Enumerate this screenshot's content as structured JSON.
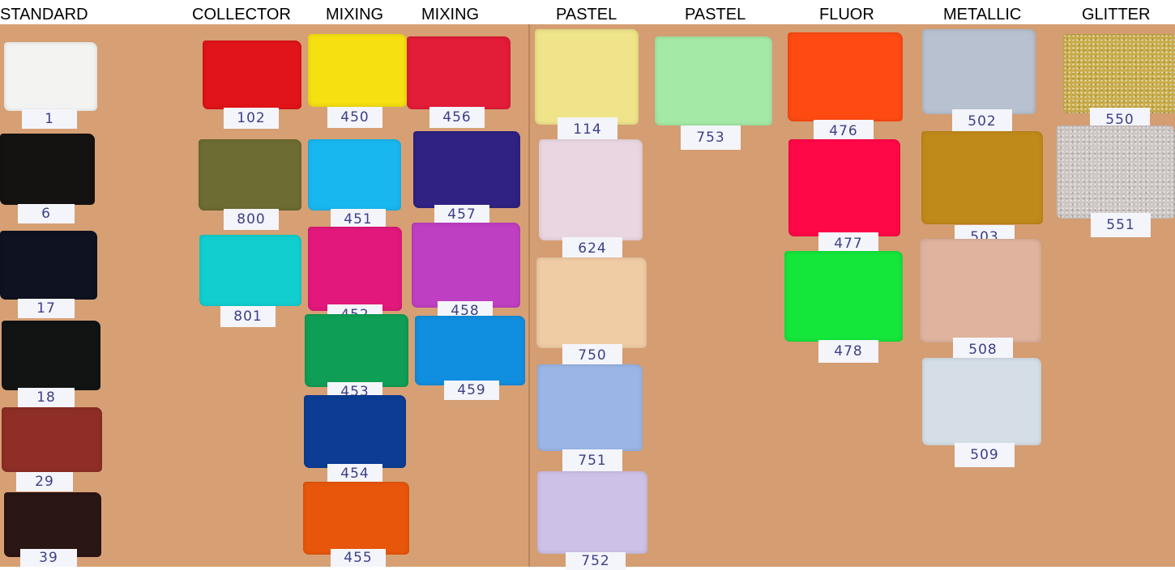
{
  "headers": [
    "STANDARD",
    "COLLECTOR",
    "MIXING",
    "MIXING",
    "PASTEL",
    "PASTEL",
    "FLUOR",
    "METALLIC",
    "GLITTER"
  ],
  "board_colors": {
    "left": "#d6a074",
    "right": "#d49d72"
  },
  "swatches": [
    {
      "code": "1",
      "color": "#f3f3f2",
      "group": "STANDARD"
    },
    {
      "code": "6",
      "color": "#151212",
      "group": "STANDARD"
    },
    {
      "code": "17",
      "color": "#0f1220",
      "group": "STANDARD"
    },
    {
      "code": "18",
      "color": "#121414",
      "group": "STANDARD"
    },
    {
      "code": "29",
      "color": "#8e2e26",
      "group": "STANDARD"
    },
    {
      "code": "39",
      "color": "#2a1614",
      "group": "STANDARD"
    },
    {
      "code": "102",
      "color": "#e01419",
      "group": "COLLECTOR"
    },
    {
      "code": "800",
      "color": "#6d6c32",
      "group": "COLLECTOR"
    },
    {
      "code": "801",
      "color": "#11cfcf",
      "group": "COLLECTOR"
    },
    {
      "code": "450",
      "color": "#f6e011",
      "group": "MIXING"
    },
    {
      "code": "451",
      "color": "#19b7ef",
      "group": "MIXING"
    },
    {
      "code": "452",
      "color": "#e2187c",
      "group": "MIXING"
    },
    {
      "code": "453",
      "color": "#0f9e56",
      "group": "MIXING"
    },
    {
      "code": "454",
      "color": "#0b3d94",
      "group": "MIXING"
    },
    {
      "code": "455",
      "color": "#e8560c",
      "group": "MIXING"
    },
    {
      "code": "456",
      "color": "#e31c38",
      "group": "MIXING"
    },
    {
      "code": "457",
      "color": "#2f2283",
      "group": "MIXING"
    },
    {
      "code": "458",
      "color": "#bf3fc2",
      "group": "MIXING"
    },
    {
      "code": "459",
      "color": "#108ee0",
      "group": "MIXING"
    },
    {
      "code": "114",
      "color": "#efe48a",
      "group": "PASTEL"
    },
    {
      "code": "624",
      "color": "#ead6e0",
      "group": "PASTEL"
    },
    {
      "code": "750",
      "color": "#f0cca4",
      "group": "PASTEL"
    },
    {
      "code": "751",
      "color": "#9bb6e6",
      "group": "PASTEL"
    },
    {
      "code": "752",
      "color": "#cdc1e8",
      "group": "PASTEL"
    },
    {
      "code": "753",
      "color": "#a5e9a6",
      "group": "PASTEL"
    },
    {
      "code": "476",
      "color": "#ff4a12",
      "group": "FLUOR"
    },
    {
      "code": "477",
      "color": "#ff0848",
      "group": "FLUOR"
    },
    {
      "code": "478",
      "color": "#14e63a",
      "group": "FLUOR"
    },
    {
      "code": "502",
      "color": "#b7c1cf",
      "group": "METALLIC"
    },
    {
      "code": "503",
      "color": "#c08a1a",
      "group": "METALLIC"
    },
    {
      "code": "508",
      "color": "#dfb39e",
      "group": "METALLIC"
    },
    {
      "code": "509",
      "color": "#d5dee6",
      "group": "METALLIC"
    },
    {
      "code": "550",
      "color": "#c9ac4a",
      "group": "GLITTER"
    },
    {
      "code": "551",
      "color": "#cdc6c4",
      "group": "GLITTER"
    }
  ]
}
